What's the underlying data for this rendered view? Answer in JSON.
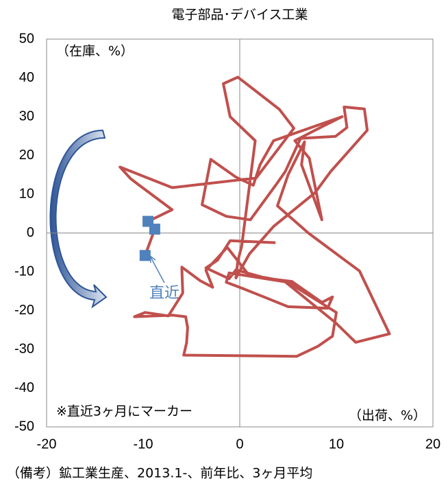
{
  "chart_data": {
    "type": "line",
    "title": "電子部品･デバイス工業",
    "y_annotation": "（在庫、%）",
    "x_annotation": "（出荷、%）",
    "note": "※直近3ヶ月にマーカー",
    "latest_label": "直近",
    "footer": "（備考）鉱工業生産、2013.1-、前年比、3ヶ月平均",
    "xlim": [
      -20,
      20
    ],
    "xticks": [
      -20,
      -10,
      0,
      10,
      20
    ],
    "ylim": [
      -50,
      50
    ],
    "yticks": [
      -50,
      -40,
      -30,
      -20,
      -10,
      0,
      10,
      20,
      30,
      40,
      50
    ],
    "markers_last": 3,
    "marker_color": "#4f81bd",
    "series": [
      {
        "color": "#c0504d",
        "x": [
          3.7,
          -1,
          -2.3,
          -3.5,
          -1.1,
          -0.4,
          2.8,
          5.4,
          8.5,
          9.6,
          9.1,
          5,
          2.5,
          0.4,
          -1.4,
          -1.1,
          5,
          10,
          9.6,
          8.1,
          5.9,
          -5.8,
          -5.5,
          -5.4,
          -5.6,
          -6.9,
          -10.9,
          -9.8,
          -7.4,
          -5.9,
          -6,
          -4.1,
          -2.8,
          -3.5,
          -2.3,
          -1.3,
          0.9,
          4.6,
          9.9,
          12,
          15.5,
          12.4,
          7.1,
          3.9,
          5,
          6.7,
          6.4,
          8.5,
          7.2,
          5.7,
          8.5,
          10.6,
          3.5,
          2.1,
          1.4,
          -0.4,
          -3,
          -3.9,
          -1.4,
          1.1,
          3.8,
          4.7,
          6.3,
          9.9,
          11.1,
          10.8,
          12.9,
          13.2,
          9.4,
          7.8,
          3.5,
          1,
          -0.4,
          -0.2,
          0.2,
          1.6,
          -1,
          -1.7,
          -0.2,
          4.1,
          5.6,
          1.7,
          -7,
          -12.4,
          -11.3,
          -10.5,
          -7,
          -9.5,
          -8.8,
          -9.8
        ],
        "values": [
          -2.5,
          -2,
          -7,
          -9,
          -11.8,
          -9.5,
          -11.7,
          -12.5,
          -17.9,
          -16.5,
          -19.4,
          -19,
          -16.5,
          -14.4,
          -12.7,
          -10.3,
          -12.7,
          -20.5,
          -26.6,
          -29.2,
          -31.8,
          -31.5,
          -28.3,
          -24.4,
          -21.6,
          -21.2,
          -21.6,
          -20.5,
          -21.4,
          -15.5,
          -8.8,
          -12.3,
          -14,
          -9.6,
          -6.4,
          -3.7,
          -10.7,
          -12.4,
          -23.1,
          -28.2,
          -26,
          -9.8,
          0,
          7,
          15,
          23.5,
          17.6,
          3.4,
          19.3,
          23.8,
          27.4,
          30,
          23.8,
          17.6,
          12.3,
          14.4,
          19,
          7.3,
          4.3,
          3.4,
          12.6,
          15.8,
          24.4,
          24.9,
          27.2,
          32.5,
          32,
          26.5,
          15.8,
          10.4,
          1.7,
          -5.4,
          -11.6,
          -7.2,
          -3.4,
          23.8,
          30,
          38.5,
          40.2,
          31.9,
          27,
          14.2,
          11.7,
          17,
          14,
          12.5,
          6,
          3,
          1,
          -5.8
        ]
      }
    ]
  }
}
